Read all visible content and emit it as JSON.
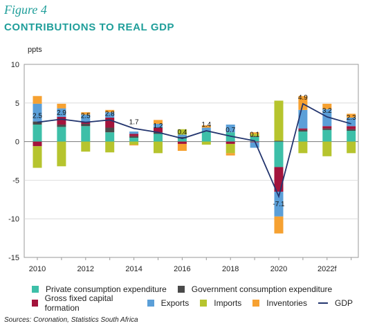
{
  "figure_label": "Figure 4",
  "title": "CONTRIBUTIONS TO REAL GDP",
  "sources": "Sources: Coronation, Statistics South Africa",
  "chart_data": {
    "type": "bar",
    "stacked": true,
    "ylabel": "ppts",
    "ylim": [
      -15,
      10
    ],
    "yticks": [
      "10",
      "5",
      "0",
      "-5",
      "-10",
      "-15"
    ],
    "years": [
      2010,
      2011,
      2012,
      2013,
      2014,
      2015,
      2016,
      2017,
      2018,
      2019,
      2020,
      2021,
      2022,
      2023
    ],
    "xtick_labels": [
      {
        "year": 2010,
        "label": "2010"
      },
      {
        "year": 2012,
        "label": "2012"
      },
      {
        "year": 2014,
        "label": "2014"
      },
      {
        "year": 2016,
        "label": "2016"
      },
      {
        "year": 2018,
        "label": "2018"
      },
      {
        "year": 2020,
        "label": "2020"
      },
      {
        "year": 2022,
        "label": "2022f"
      }
    ],
    "series": [
      {
        "name": "Private consumption expenditure",
        "color": "#3dbfa8",
        "values": [
          2.2,
          1.9,
          2.0,
          1.2,
          0.5,
          1.0,
          0.4,
          1.4,
          1.2,
          0.6,
          -3.3,
          1.3,
          1.5,
          1.4
        ]
      },
      {
        "name": "Government consumption expenditure",
        "color": "#4a4a4a",
        "values": [
          0.4,
          0.3,
          0.3,
          0.6,
          0.2,
          0.2,
          0.2,
          0.0,
          0.0,
          0.1,
          0.1,
          0.2,
          0.2,
          0.2
        ]
      },
      {
        "name": "Gross fixed capital formation",
        "color": "#a3143c",
        "values": [
          -0.6,
          1.0,
          0.2,
          1.3,
          0.3,
          0.6,
          -0.3,
          0.0,
          -0.3,
          -0.1,
          -3.2,
          0.2,
          0.3,
          0.4
        ]
      },
      {
        "name": "Exports",
        "color": "#5b9fd8",
        "values": [
          2.3,
          1.1,
          1.0,
          0.7,
          0.3,
          0.5,
          0.3,
          0.4,
          1.0,
          -0.7,
          -3.2,
          2.4,
          2.2,
          1.1
        ]
      },
      {
        "name": "Imports",
        "color": "#b6c42e",
        "values": [
          -2.8,
          -3.2,
          -1.3,
          -1.4,
          -0.4,
          -1.5,
          0.7,
          -0.4,
          -1.2,
          0.3,
          5.2,
          -1.5,
          -1.9,
          -1.5
        ]
      },
      {
        "name": "Inventories",
        "color": "#f6a131",
        "values": [
          1.0,
          0.6,
          0.3,
          0.3,
          -0.1,
          0.5,
          -0.9,
          0.3,
          -0.3,
          0.2,
          -2.2,
          1.8,
          0.7,
          0.5
        ]
      }
    ],
    "gdp": {
      "name": "GDP",
      "color": "#23356e",
      "values": [
        2.5,
        2.9,
        2.5,
        2.8,
        1.7,
        1.2,
        0.4,
        1.4,
        0.7,
        0.1,
        -7.1,
        4.9,
        3.2,
        2.3
      ]
    },
    "data_labels": [
      "2.5",
      "2.9",
      "2.5",
      "2.8",
      "1.7",
      "1.2",
      "0.4",
      "1.4",
      "0.7",
      "0.1",
      "-7.1",
      "4.9",
      "3.2",
      "2.3"
    ],
    "grid": true
  }
}
